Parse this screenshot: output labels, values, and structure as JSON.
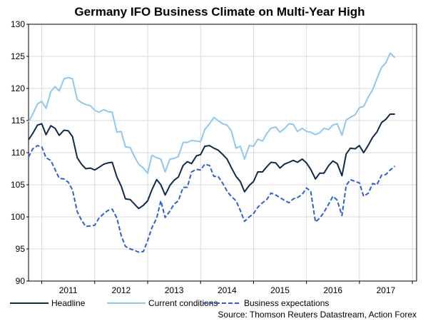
{
  "chart_data": {
    "type": "line",
    "title": "Germany IFO Business Climate on Multi-Year High",
    "xlabel": "",
    "ylabel": "",
    "ylim": [
      90,
      130
    ],
    "y_ticks": [
      "90",
      "95",
      "100",
      "105",
      "110",
      "115",
      "120",
      "125",
      "130"
    ],
    "x_start": 2010.25,
    "x_end": 2017.58,
    "x_tick_labels": [
      {
        "label": "2011",
        "x": 2011.0
      },
      {
        "label": "2012",
        "x": 2012.0
      },
      {
        "label": "2013",
        "x": 2013.0
      },
      {
        "label": "2014",
        "x": 2014.0
      },
      {
        "label": "2015",
        "x": 2015.0
      },
      {
        "label": "2016",
        "x": 2016.0
      },
      {
        "label": "2017",
        "x": 2017.0
      }
    ],
    "year_boundaries": [
      2010.5,
      2011.5,
      2012.5,
      2013.5,
      2014.5,
      2015.5,
      2016.5,
      2017.5
    ],
    "grid": true,
    "legend_position": "bottom",
    "series": [
      {
        "name": "Headline",
        "color": "#0d2a4d",
        "dash": "solid",
        "points": [
          [
            2010.25,
            112
          ],
          [
            2010.33,
            113
          ],
          [
            2010.42,
            114.3
          ],
          [
            2010.5,
            114.5
          ],
          [
            2010.58,
            112.8
          ],
          [
            2010.67,
            114.2
          ],
          [
            2010.75,
            113.8
          ],
          [
            2010.83,
            112.7
          ],
          [
            2010.92,
            113.5
          ],
          [
            2011.0,
            113.4
          ],
          [
            2011.08,
            112.5
          ],
          [
            2011.17,
            109.2
          ],
          [
            2011.25,
            108.2
          ],
          [
            2011.33,
            107.5
          ],
          [
            2011.42,
            107.6
          ],
          [
            2011.5,
            107.3
          ],
          [
            2011.58,
            107.7
          ],
          [
            2011.67,
            108.2
          ],
          [
            2011.75,
            108.4
          ],
          [
            2011.83,
            108.5
          ],
          [
            2011.92,
            106.2
          ],
          [
            2012.0,
            104.8
          ],
          [
            2012.08,
            102.8
          ],
          [
            2012.17,
            102.7
          ],
          [
            2012.25,
            102.0
          ],
          [
            2012.33,
            101.3
          ],
          [
            2012.42,
            101.8
          ],
          [
            2012.5,
            102.5
          ],
          [
            2012.58,
            104.2
          ],
          [
            2012.67,
            105.8
          ],
          [
            2012.75,
            105
          ],
          [
            2012.83,
            103.4
          ],
          [
            2012.92,
            104.9
          ],
          [
            2013.0,
            105.7
          ],
          [
            2013.08,
            106.2
          ],
          [
            2013.17,
            108
          ],
          [
            2013.25,
            108.6
          ],
          [
            2013.33,
            108.3
          ],
          [
            2013.42,
            109.5
          ],
          [
            2013.5,
            109.7
          ],
          [
            2013.58,
            111
          ],
          [
            2013.67,
            111.1
          ],
          [
            2013.75,
            110.7
          ],
          [
            2013.83,
            110.4
          ],
          [
            2013.92,
            109.7
          ],
          [
            2014.0,
            109
          ],
          [
            2014.08,
            107.7
          ],
          [
            2014.17,
            106.3
          ],
          [
            2014.25,
            105.5
          ],
          [
            2014.33,
            103.9
          ],
          [
            2014.42,
            104.9
          ],
          [
            2014.5,
            105.5
          ],
          [
            2014.58,
            107
          ],
          [
            2014.67,
            107
          ],
          [
            2014.75,
            107.8
          ],
          [
            2014.83,
            108.5
          ],
          [
            2014.92,
            108.4
          ],
          [
            2015.0,
            107.6
          ],
          [
            2015.08,
            108.2
          ],
          [
            2015.17,
            108.5
          ],
          [
            2015.25,
            108.8
          ],
          [
            2015.33,
            108.5
          ],
          [
            2015.42,
            109
          ],
          [
            2015.5,
            108.4
          ],
          [
            2015.58,
            107.4
          ],
          [
            2015.67,
            105.9
          ],
          [
            2015.75,
            106.8
          ],
          [
            2015.83,
            106.8
          ],
          [
            2015.92,
            108
          ],
          [
            2016.0,
            108.7
          ],
          [
            2016.08,
            108.3
          ],
          [
            2016.17,
            106.4
          ],
          [
            2016.25,
            109.8
          ],
          [
            2016.33,
            110.7
          ],
          [
            2016.42,
            110.6
          ],
          [
            2016.5,
            111.1
          ],
          [
            2016.58,
            110
          ],
          [
            2016.67,
            111.2
          ],
          [
            2016.75,
            112.4
          ],
          [
            2016.83,
            113.2
          ],
          [
            2016.92,
            114.7
          ],
          [
            2017.0,
            115.2
          ],
          [
            2017.08,
            116
          ],
          [
            2017.17,
            116
          ]
        ]
      },
      {
        "name": "Current conditions",
        "color": "#8ec8f0",
        "dash": "solid",
        "points": [
          [
            2010.25,
            114.8
          ],
          [
            2010.33,
            116
          ],
          [
            2010.42,
            117.6
          ],
          [
            2010.5,
            118
          ],
          [
            2010.58,
            116.9
          ],
          [
            2010.67,
            119.5
          ],
          [
            2010.75,
            120.3
          ],
          [
            2010.83,
            119.6
          ],
          [
            2010.92,
            121.5
          ],
          [
            2011.0,
            121.7
          ],
          [
            2011.08,
            121.5
          ],
          [
            2011.17,
            118.3
          ],
          [
            2011.25,
            117.8
          ],
          [
            2011.33,
            117.5
          ],
          [
            2011.42,
            117.3
          ],
          [
            2011.5,
            116.6
          ],
          [
            2011.58,
            116.3
          ],
          [
            2011.67,
            116.7
          ],
          [
            2011.75,
            116.4
          ],
          [
            2011.83,
            116.3
          ],
          [
            2011.92,
            113.2
          ],
          [
            2012.0,
            113.3
          ],
          [
            2012.08,
            110.9
          ],
          [
            2012.17,
            110.8
          ],
          [
            2012.25,
            109.4
          ],
          [
            2012.33,
            108.2
          ],
          [
            2012.42,
            107.6
          ],
          [
            2012.5,
            106.8
          ],
          [
            2012.58,
            109.6
          ],
          [
            2012.67,
            109.2
          ],
          [
            2012.75,
            109
          ],
          [
            2012.83,
            107
          ],
          [
            2012.92,
            109
          ],
          [
            2013.0,
            109.1
          ],
          [
            2013.08,
            109.4
          ],
          [
            2013.17,
            111.6
          ],
          [
            2013.25,
            111.6
          ],
          [
            2013.33,
            111.9
          ],
          [
            2013.42,
            111.8
          ],
          [
            2013.5,
            111.7
          ],
          [
            2013.58,
            113.6
          ],
          [
            2013.67,
            114.5
          ],
          [
            2013.75,
            115.5
          ],
          [
            2013.83,
            115
          ],
          [
            2013.92,
            114.5
          ],
          [
            2014.0,
            114.3
          ],
          [
            2014.08,
            113.4
          ],
          [
            2014.17,
            110.7
          ],
          [
            2014.25,
            111
          ],
          [
            2014.33,
            109
          ],
          [
            2014.42,
            111.1
          ],
          [
            2014.5,
            111
          ],
          [
            2014.58,
            112.1
          ],
          [
            2014.67,
            111.8
          ],
          [
            2014.75,
            113
          ],
          [
            2014.83,
            113.8
          ],
          [
            2014.92,
            114
          ],
          [
            2015.0,
            113.2
          ],
          [
            2015.08,
            113.7
          ],
          [
            2015.17,
            114.5
          ],
          [
            2015.25,
            114.4
          ],
          [
            2015.33,
            113.3
          ],
          [
            2015.42,
            113.8
          ],
          [
            2015.5,
            113.3
          ],
          [
            2015.58,
            113.2
          ],
          [
            2015.67,
            112.8
          ],
          [
            2015.75,
            113.1
          ],
          [
            2015.83,
            113.8
          ],
          [
            2015.92,
            113.6
          ],
          [
            2016.0,
            114.3
          ],
          [
            2016.08,
            114.5
          ],
          [
            2016.17,
            112.7
          ],
          [
            2016.25,
            115.1
          ],
          [
            2016.33,
            115.5
          ],
          [
            2016.42,
            115.9
          ],
          [
            2016.5,
            117
          ],
          [
            2016.58,
            117.2
          ],
          [
            2016.67,
            118.7
          ],
          [
            2016.75,
            119.8
          ],
          [
            2016.83,
            121.5
          ],
          [
            2016.92,
            123.3
          ],
          [
            2017.0,
            124
          ],
          [
            2017.08,
            125.5
          ],
          [
            2017.17,
            124.8
          ]
        ]
      },
      {
        "name": "Business expectations",
        "color": "#2b5fd9",
        "dash": "dashed",
        "points": [
          [
            2010.25,
            109.3
          ],
          [
            2010.33,
            110.6
          ],
          [
            2010.42,
            111.1
          ],
          [
            2010.5,
            110.9
          ],
          [
            2010.58,
            109.2
          ],
          [
            2010.67,
            108.8
          ],
          [
            2010.75,
            107.4
          ],
          [
            2010.83,
            106
          ],
          [
            2010.92,
            105.9
          ],
          [
            2011.0,
            105.4
          ],
          [
            2011.08,
            104.2
          ],
          [
            2011.17,
            100.8
          ],
          [
            2011.25,
            99.5
          ],
          [
            2011.33,
            98.5
          ],
          [
            2011.42,
            98.6
          ],
          [
            2011.5,
            98.7
          ],
          [
            2011.58,
            99.8
          ],
          [
            2011.67,
            100.5
          ],
          [
            2011.75,
            101
          ],
          [
            2011.83,
            101.2
          ],
          [
            2011.92,
            99.8
          ],
          [
            2012.0,
            97.1
          ],
          [
            2012.08,
            95.4
          ],
          [
            2012.17,
            95
          ],
          [
            2012.25,
            94.8
          ],
          [
            2012.33,
            94.5
          ],
          [
            2012.42,
            94.6
          ],
          [
            2012.5,
            96.3
          ],
          [
            2012.58,
            98.3
          ],
          [
            2012.67,
            99.8
          ],
          [
            2012.75,
            102.5
          ],
          [
            2012.83,
            99.9
          ],
          [
            2012.92,
            100.9
          ],
          [
            2013.0,
            102
          ],
          [
            2013.08,
            102.5
          ],
          [
            2013.17,
            104.6
          ],
          [
            2013.25,
            104.6
          ],
          [
            2013.33,
            107
          ],
          [
            2013.42,
            107.4
          ],
          [
            2013.5,
            107.3
          ],
          [
            2013.58,
            108.2
          ],
          [
            2013.67,
            108
          ],
          [
            2013.75,
            106.3
          ],
          [
            2013.83,
            106.3
          ],
          [
            2013.92,
            105.2
          ],
          [
            2014.0,
            104
          ],
          [
            2014.08,
            103.2
          ],
          [
            2014.17,
            102.5
          ],
          [
            2014.25,
            101
          ],
          [
            2014.33,
            99.3
          ],
          [
            2014.42,
            100
          ],
          [
            2014.5,
            100.5
          ],
          [
            2014.58,
            101.5
          ],
          [
            2014.67,
            102.2
          ],
          [
            2014.75,
            102.7
          ],
          [
            2014.83,
            103.7
          ],
          [
            2014.92,
            103.4
          ],
          [
            2015.0,
            103
          ],
          [
            2015.08,
            102.6
          ],
          [
            2015.17,
            102.2
          ],
          [
            2015.25,
            102.8
          ],
          [
            2015.33,
            103
          ],
          [
            2015.42,
            103.5
          ],
          [
            2015.5,
            104.5
          ],
          [
            2015.58,
            104
          ],
          [
            2015.67,
            99.2
          ],
          [
            2015.75,
            99.8
          ],
          [
            2015.83,
            100.7
          ],
          [
            2015.92,
            102
          ],
          [
            2016.0,
            103.2
          ],
          [
            2016.08,
            102.6
          ],
          [
            2016.17,
            100.2
          ],
          [
            2016.25,
            104.9
          ],
          [
            2016.33,
            105.8
          ],
          [
            2016.42,
            105.5
          ],
          [
            2016.5,
            105.3
          ],
          [
            2016.58,
            103.2
          ],
          [
            2016.67,
            103.7
          ],
          [
            2016.75,
            105.2
          ],
          [
            2016.83,
            105
          ],
          [
            2016.92,
            106.5
          ],
          [
            2017.0,
            106.6
          ],
          [
            2017.08,
            107.3
          ],
          [
            2017.17,
            107.9
          ]
        ]
      }
    ],
    "source": "Source: Thomson Reuters Datastream, Action Forex"
  }
}
